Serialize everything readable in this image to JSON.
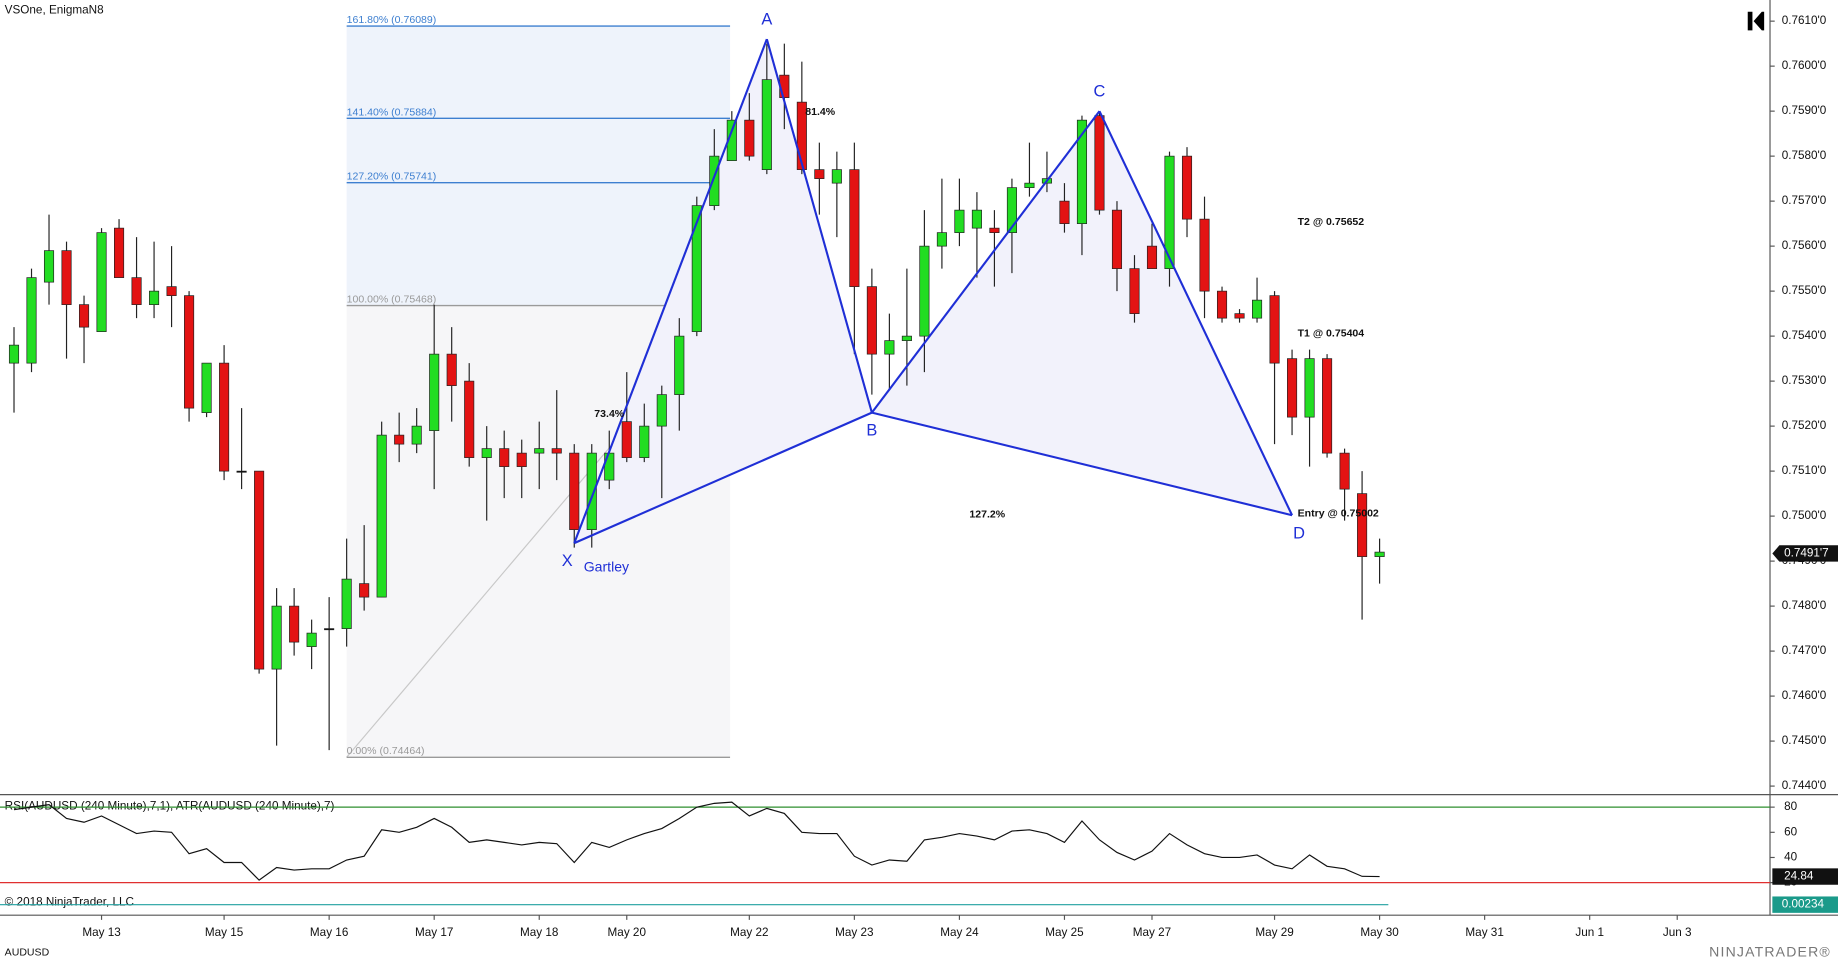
{
  "chart_data": {
    "type": "candlestick",
    "title": "VSOne, EnigmaN8",
    "symbol": "AUDUSD",
    "copyright": "© 2018 NinjaTrader, LLC",
    "logo": "NINJATRADER®",
    "colors": {
      "up": "#22dd22",
      "down": "#e31313",
      "flat": "#000000",
      "pattern": "#1f2fd6"
    },
    "xlim": [
      -0.8,
      100.3
    ],
    "xticks": [
      {
        "value": 5,
        "label": "May 13"
      },
      {
        "value": 12,
        "label": "May 15"
      },
      {
        "value": 18,
        "label": "May 16"
      },
      {
        "value": 24,
        "label": "May 17"
      },
      {
        "value": 30,
        "label": "May 18"
      },
      {
        "value": 35,
        "label": "May 20"
      },
      {
        "value": 42,
        "label": "May 22"
      },
      {
        "value": 48,
        "label": "May 23"
      },
      {
        "value": 54,
        "label": "May 24"
      },
      {
        "value": 60,
        "label": "May 25"
      },
      {
        "value": 65,
        "label": "May 27"
      },
      {
        "value": 72,
        "label": "May 29"
      },
      {
        "value": 78,
        "label": "May 30"
      },
      {
        "value": 84,
        "label": "May 31"
      },
      {
        "value": 90,
        "label": "Jun 1"
      },
      {
        "value": 95,
        "label": "Jun 3"
      }
    ],
    "ylim": [
      0.74381,
      0.76147
    ],
    "yticks": [
      {
        "value": 0.744,
        "label": "0.7440'0"
      },
      {
        "value": 0.745,
        "label": "0.7450'0"
      },
      {
        "value": 0.746,
        "label": "0.7460'0"
      },
      {
        "value": 0.747,
        "label": "0.7470'0"
      },
      {
        "value": 0.748,
        "label": "0.7480'0"
      },
      {
        "value": 0.749,
        "label": "0.7490'0"
      },
      {
        "value": 0.75,
        "label": "0.7500'0"
      },
      {
        "value": 0.751,
        "label": "0.7510'0"
      },
      {
        "value": 0.752,
        "label": "0.7520'0"
      },
      {
        "value": 0.753,
        "label": "0.7530'0"
      },
      {
        "value": 0.754,
        "label": "0.7540'0"
      },
      {
        "value": 0.755,
        "label": "0.7550'0"
      },
      {
        "value": 0.756,
        "label": "0.7560'0"
      },
      {
        "value": 0.757,
        "label": "0.7570'0"
      },
      {
        "value": 0.758,
        "label": "0.7580'0"
      },
      {
        "value": 0.759,
        "label": "0.7590'0"
      },
      {
        "value": 0.76,
        "label": "0.7600'0"
      },
      {
        "value": 0.761,
        "label": "0.7610'0"
      }
    ],
    "last_price": {
      "value": 0.74917,
      "label": "0.7491'7"
    },
    "open": [
      0.7534,
      0.7534,
      0.7552,
      0.7559,
      0.7547,
      0.7541,
      0.7564,
      0.7553,
      0.7547,
      0.7551,
      0.7549,
      0.7523,
      0.7534,
      0.751,
      0.751,
      0.7466,
      0.748,
      0.7471,
      0.7475,
      0.7475,
      0.7485,
      0.7482,
      0.7518,
      0.7516,
      0.7519,
      0.7536,
      0.753,
      0.7513,
      0.7515,
      0.7514,
      0.7514,
      0.7515,
      0.7514,
      0.7497,
      0.7508,
      0.7521,
      0.7513,
      0.752,
      0.7527,
      0.7541,
      0.7569,
      0.7579,
      0.7588,
      0.7577,
      0.7598,
      0.7592,
      0.7577,
      0.7574,
      0.7577,
      0.7551,
      0.7536,
      0.7539,
      0.754,
      0.756,
      0.7563,
      0.7564,
      0.7564,
      0.7563,
      0.7573,
      0.7574,
      0.757,
      0.7565,
      0.7589,
      0.7568,
      0.7555,
      0.756,
      0.7555,
      0.758,
      0.7566,
      0.755,
      0.7545,
      0.7544,
      0.7549,
      0.7535,
      0.7522,
      0.7535,
      0.7514,
      0.7505,
      0.7491
    ],
    "high": [
      0.7542,
      0.7555,
      0.7567,
      0.7561,
      0.7549,
      0.7564,
      0.7566,
      0.7562,
      0.7561,
      0.756,
      0.755,
      0.7534,
      0.7538,
      0.7524,
      0.751,
      0.7484,
      0.7484,
      0.7477,
      0.7482,
      0.7495,
      0.7498,
      0.7521,
      0.7523,
      0.7524,
      0.7547,
      0.7542,
      0.7534,
      0.752,
      0.7519,
      0.7517,
      0.7521,
      0.7528,
      0.7516,
      0.7516,
      0.7519,
      0.7532,
      0.7525,
      0.7529,
      0.7544,
      0.7571,
      0.7586,
      0.759,
      0.7594,
      0.7605,
      0.7605,
      0.7601,
      0.7583,
      0.7581,
      0.7583,
      0.7555,
      0.7545,
      0.7555,
      0.7568,
      0.7575,
      0.7575,
      0.7572,
      0.7568,
      0.7575,
      0.7583,
      0.7581,
      0.7574,
      0.7589,
      0.759,
      0.757,
      0.7558,
      0.7565,
      0.7581,
      0.7582,
      0.7571,
      0.7551,
      0.7546,
      0.7553,
      0.755,
      0.7537,
      0.7537,
      0.7536,
      0.7515,
      0.751,
      0.7495
    ],
    "low": [
      0.7523,
      0.7532,
      0.7547,
      0.7535,
      0.7534,
      0.7541,
      0.7553,
      0.7544,
      0.7544,
      0.7542,
      0.7521,
      0.7522,
      0.7508,
      0.7506,
      0.7465,
      0.7449,
      0.7469,
      0.7466,
      0.7448,
      0.7471,
      0.7479,
      0.7482,
      0.7512,
      0.7514,
      0.7506,
      0.7521,
      0.7511,
      0.7499,
      0.7504,
      0.7504,
      0.7506,
      0.7508,
      0.7493,
      0.7493,
      0.7506,
      0.7512,
      0.7512,
      0.7504,
      0.7519,
      0.754,
      0.7568,
      0.7579,
      0.7579,
      0.7576,
      0.7586,
      0.7576,
      0.7567,
      0.7562,
      0.7536,
      0.7527,
      0.7528,
      0.7529,
      0.7532,
      0.7555,
      0.756,
      0.7553,
      0.7551,
      0.7554,
      0.7571,
      0.7572,
      0.7563,
      0.7558,
      0.7567,
      0.755,
      0.7543,
      0.7555,
      0.7551,
      0.7562,
      0.7544,
      0.7543,
      0.7543,
      0.7543,
      0.7516,
      0.7518,
      0.7511,
      0.7513,
      0.7499,
      0.7477,
      0.7485
    ],
    "close": [
      0.7538,
      0.7553,
      0.7559,
      0.7547,
      0.7542,
      0.7563,
      0.7553,
      0.7547,
      0.755,
      0.7549,
      0.7524,
      0.7534,
      0.751,
      0.751,
      0.7466,
      0.748,
      0.7472,
      0.7474,
      0.7475,
      0.7486,
      0.7482,
      0.7518,
      0.7516,
      0.752,
      0.7536,
      0.7529,
      0.7513,
      0.7515,
      0.7511,
      0.7511,
      0.7515,
      0.7514,
      0.7497,
      0.7514,
      0.7514,
      0.7513,
      0.752,
      0.7527,
      0.754,
      0.7569,
      0.758,
      0.7588,
      0.758,
      0.7597,
      0.7593,
      0.7577,
      0.7575,
      0.7577,
      0.7551,
      0.7536,
      0.7539,
      0.754,
      0.756,
      0.7563,
      0.7568,
      0.7568,
      0.7563,
      0.7573,
      0.7574,
      0.7575,
      0.7565,
      0.7588,
      0.7568,
      0.7555,
      0.7545,
      0.7555,
      0.758,
      0.7566,
      0.755,
      0.7544,
      0.7544,
      0.7548,
      0.7534,
      0.7522,
      0.7535,
      0.7514,
      0.7506,
      0.7491,
      0.7492
    ],
    "fib_levels": [
      {
        "value": 0.76089,
        "label": "161.80% (0.76089)",
        "color": "#3d7fd0"
      },
      {
        "value": 0.75884,
        "label": "141.40% (0.75884)",
        "color": "#3d7fd0"
      },
      {
        "value": 0.75741,
        "label": "127.20% (0.75741)",
        "color": "#3d7fd0"
      },
      {
        "value": 0.75468,
        "label": "100.00% (0.75468)",
        "color": "#9a9a9a"
      },
      {
        "value": 0.74464,
        "label": "0.00% (0.74464)",
        "color": "#9a9a9a"
      }
    ],
    "pattern": {
      "name": "Gartley",
      "points": [
        {
          "label": "X",
          "x": 32,
          "price": 0.7494
        },
        {
          "label": "A",
          "x": 43,
          "price": 0.7606
        },
        {
          "label": "B",
          "x": 49,
          "price": 0.7523
        },
        {
          "label": "C",
          "x": 62,
          "price": 0.759
        },
        {
          "label": "D",
          "x": 73,
          "price": 0.75002
        }
      ],
      "ratios": [
        "81.4%",
        "73.4%",
        "127.2%"
      ],
      "targets": [
        "T2 @ 0.75652",
        "T1 @ 0.75404",
        "Entry @ 0.75002"
      ]
    },
    "indicator": {
      "title": "RSI(AUDUSD (240 Minute),7,1), ATR(AUDUSD (240 Minute),7)",
      "ylim": [
        -4,
        89
      ],
      "yticks": [
        20,
        40,
        60,
        80
      ],
      "levels": [
        {
          "value": 80,
          "color": "#2f8f2f"
        },
        {
          "value": 20,
          "color": "#e03030"
        }
      ],
      "rsi": [
        78,
        80,
        82,
        71,
        68,
        73,
        66,
        59,
        61,
        60,
        43,
        47,
        36,
        36,
        22,
        32,
        30,
        31,
        31,
        38,
        41,
        62,
        60,
        64,
        71,
        64,
        52,
        54,
        52,
        50,
        52,
        51,
        36,
        52,
        48,
        54,
        59,
        63,
        71,
        80,
        83,
        84,
        73,
        79,
        75,
        60,
        59,
        59,
        41,
        34,
        38,
        37,
        54,
        56,
        59,
        57,
        54,
        61,
        62,
        59,
        52,
        69,
        54,
        44,
        38,
        45,
        59,
        50,
        43,
        40,
        40,
        42,
        34,
        31,
        42,
        33,
        31,
        25,
        24.84
      ],
      "rsi_last": 24.84,
      "atr_last": 0.00234
    }
  }
}
